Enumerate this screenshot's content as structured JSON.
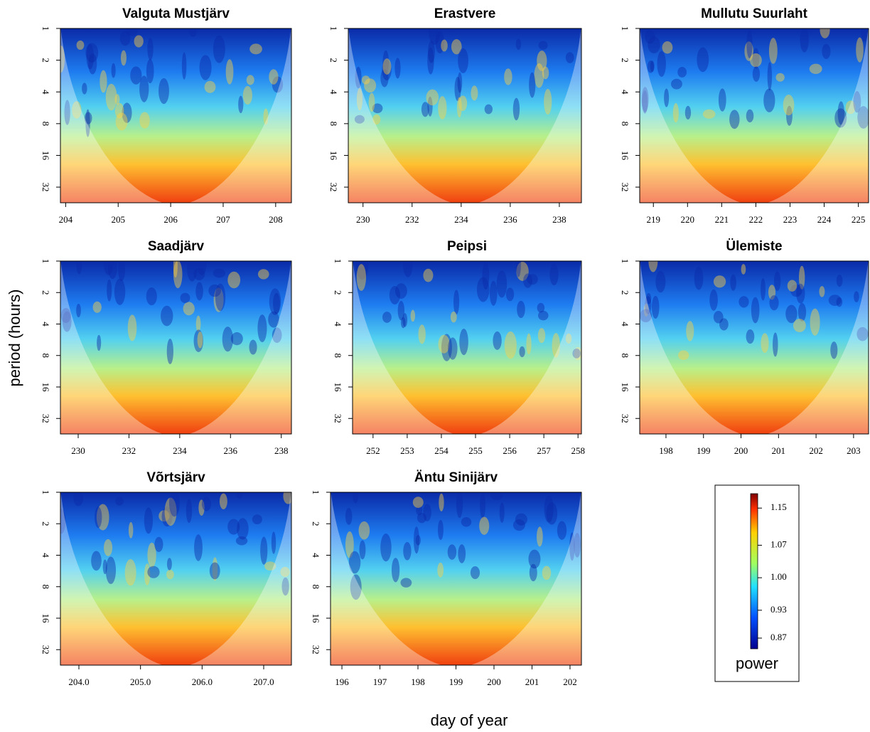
{
  "chart_data": [
    {
      "type": "heatmap",
      "title": "Valguta Mustjärv",
      "xlim": [
        203.9,
        208.3
      ],
      "xticks": [
        204,
        205,
        206,
        207,
        208
      ],
      "ylim": [
        1,
        45
      ],
      "yticks": [
        1,
        2,
        4,
        8,
        16,
        32
      ],
      "log_scale": true,
      "y_reversed": true
    },
    {
      "type": "heatmap",
      "title": "Erastvere",
      "xlim": [
        229.4,
        238.9
      ],
      "xticks": [
        230,
        232,
        234,
        236,
        238
      ],
      "ylim": [
        1,
        45
      ],
      "yticks": [
        1,
        2,
        4,
        8,
        16,
        32
      ],
      "log_scale": true,
      "y_reversed": true
    },
    {
      "type": "heatmap",
      "title": "Mullutu Suurlaht",
      "xlim": [
        218.6,
        225.3
      ],
      "xticks": [
        219,
        220,
        221,
        222,
        223,
        224,
        225
      ],
      "ylim": [
        1,
        45
      ],
      "yticks": [
        1,
        2,
        4,
        8,
        16,
        32
      ],
      "log_scale": true,
      "y_reversed": true
    },
    {
      "type": "heatmap",
      "title": "Saadjärv",
      "xlim": [
        229.3,
        238.4
      ],
      "xticks": [
        230,
        232,
        234,
        236,
        238
      ],
      "ylim": [
        1,
        45
      ],
      "yticks": [
        1,
        2,
        4,
        8,
        16,
        32
      ],
      "log_scale": true,
      "y_reversed": true
    },
    {
      "type": "heatmap",
      "title": "Peipsi",
      "xlim": [
        251.4,
        258.1
      ],
      "xticks": [
        252,
        253,
        254,
        255,
        256,
        257,
        258
      ],
      "ylim": [
        1,
        45
      ],
      "yticks": [
        1,
        2,
        4,
        8,
        16,
        32
      ],
      "log_scale": true,
      "y_reversed": true
    },
    {
      "type": "heatmap",
      "title": "Ülemiste",
      "xlim": [
        197.3,
        203.4
      ],
      "xticks": [
        198,
        199,
        200,
        201,
        202,
        203
      ],
      "ylim": [
        1,
        45
      ],
      "yticks": [
        1,
        2,
        4,
        8,
        16,
        32
      ],
      "log_scale": true,
      "y_reversed": true
    },
    {
      "type": "heatmap",
      "title": "Võrtsjärv",
      "xlim": [
        203.7,
        207.45
      ],
      "xticks": [
        {
          "value": 204,
          "label": "204.0"
        },
        {
          "value": 205,
          "label": "205.0"
        },
        {
          "value": 206,
          "label": "206.0"
        },
        {
          "value": 207,
          "label": "207.0"
        }
      ],
      "ylim": [
        1,
        45
      ],
      "yticks": [
        1,
        2,
        4,
        8,
        16,
        32
      ],
      "log_scale": true,
      "y_reversed": true
    },
    {
      "type": "heatmap",
      "title": "Äntu Sinijärv",
      "xlim": [
        195.7,
        202.3
      ],
      "xticks": [
        196,
        197,
        198,
        199,
        200,
        201,
        202
      ],
      "ylim": [
        1,
        45
      ],
      "yticks": [
        1,
        2,
        4,
        8,
        16,
        32
      ],
      "log_scale": true,
      "y_reversed": true
    }
  ],
  "ylabel": "period (hours)",
  "xlabel": "day of year",
  "colorbar": {
    "label": "power",
    "lim": [
      0.847,
      1.181
    ],
    "ticks": [
      0.87,
      0.93,
      {
        "value": 1,
        "label": "1.00"
      },
      1.07,
      1.15
    ]
  }
}
